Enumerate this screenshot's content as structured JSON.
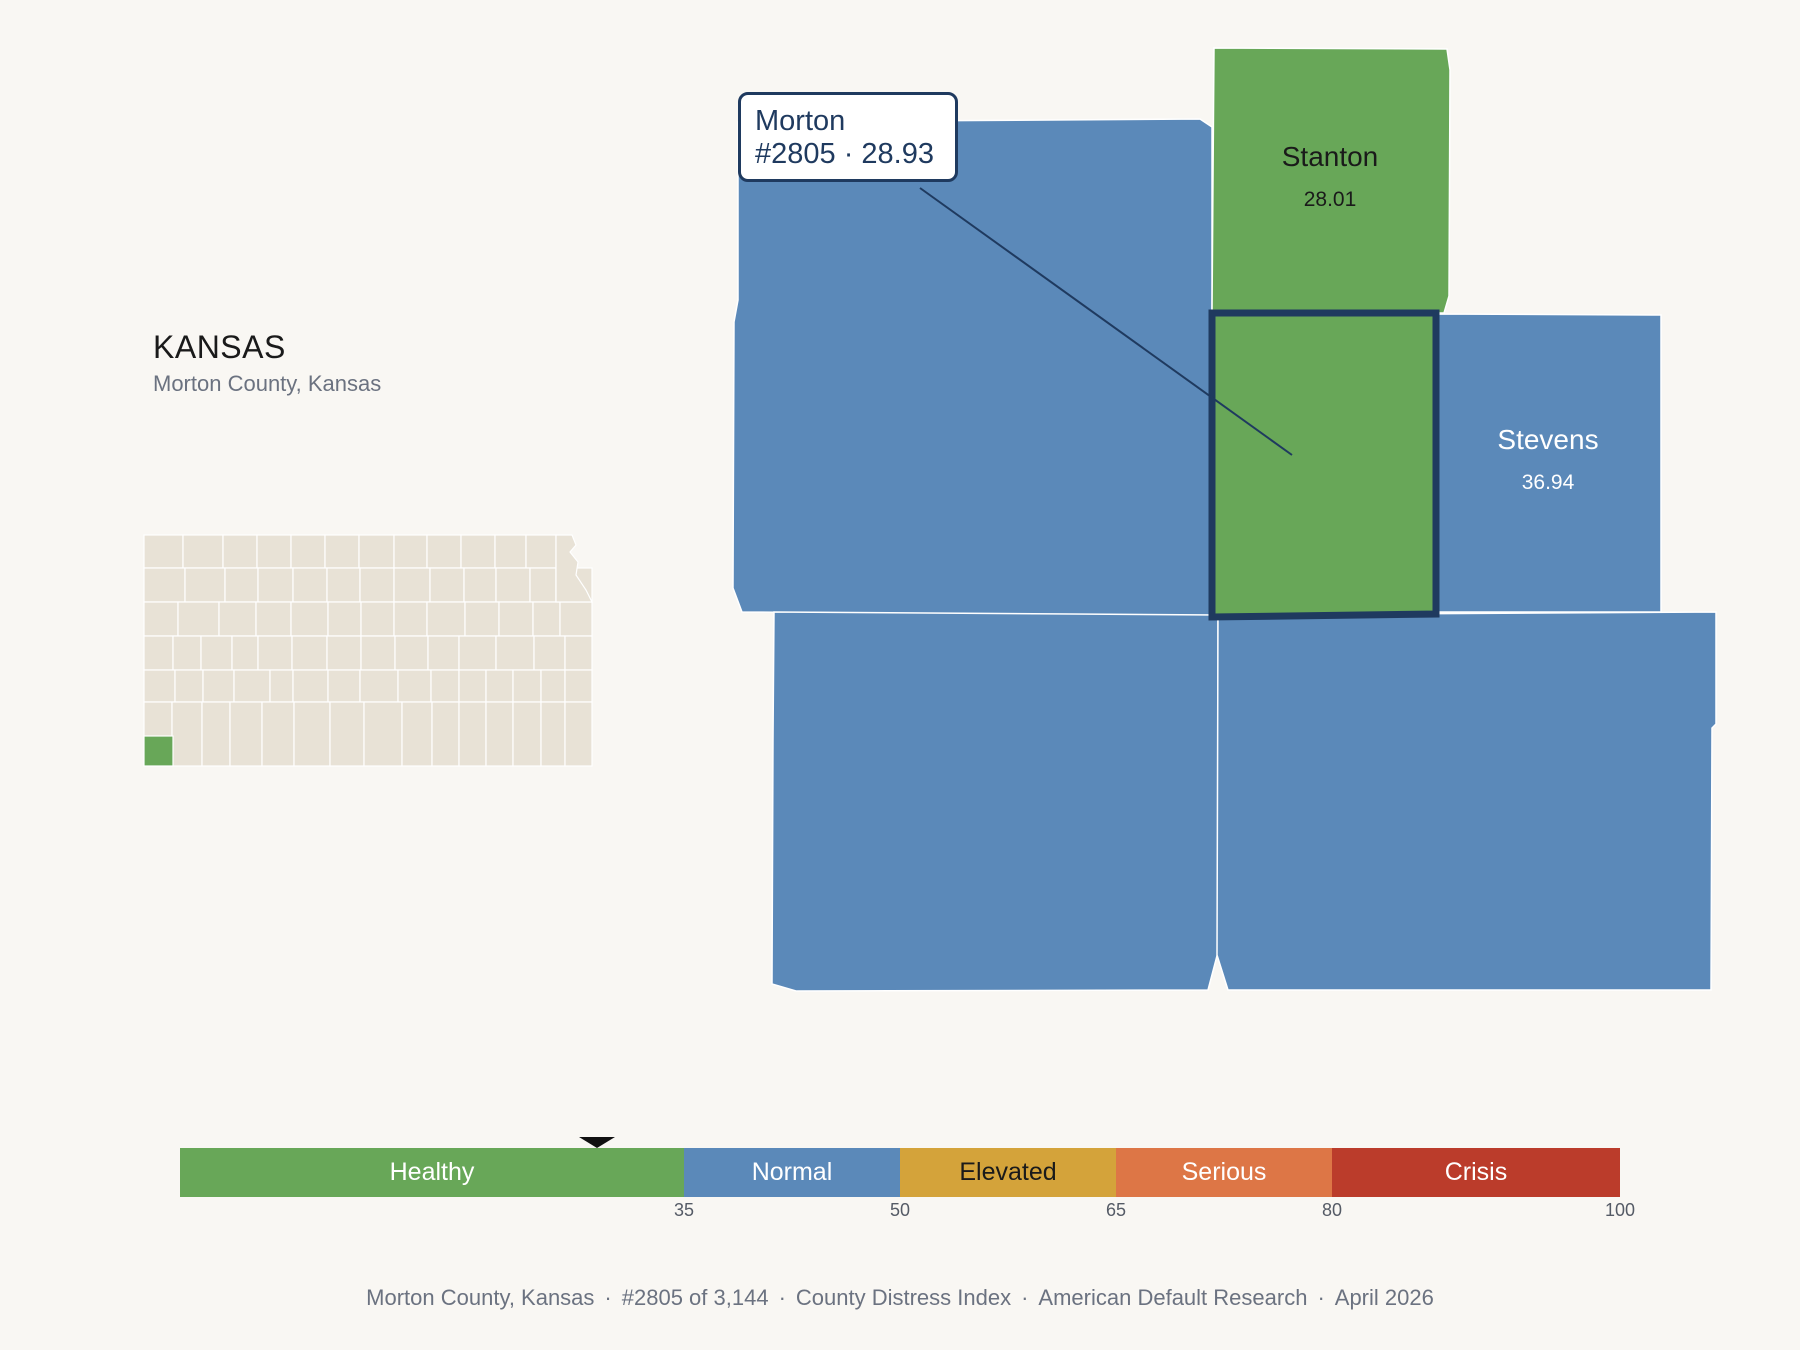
{
  "header": {
    "state_title": "KANSAS",
    "subtitle": "Morton County, Kansas"
  },
  "tooltip": {
    "county": "Morton",
    "detail": "#2805 · 28.93"
  },
  "colors": {
    "healthy": "#68a758",
    "normal": "#5b89b9",
    "elevated": "#d4a33a",
    "serious": "#dd7646",
    "crisis": "#bb3c2b",
    "highlight_outline": "#1f3a5f",
    "inset_fill": "#e8e2d6"
  },
  "counties": [
    {
      "name": "Stanton",
      "value": "28.01",
      "category": "healthy",
      "labeled": true
    },
    {
      "name": "Stevens",
      "value": "36.94",
      "category": "normal",
      "labeled": true
    },
    {
      "name": "Morton",
      "value": "28.93",
      "category": "healthy",
      "selected": true,
      "labeled": false
    },
    {
      "name": "",
      "category": "normal",
      "labeled": false
    },
    {
      "name": "",
      "category": "normal",
      "labeled": false
    },
    {
      "name": "",
      "category": "normal",
      "labeled": false
    }
  ],
  "legend": {
    "range": [
      0,
      100
    ],
    "bands": [
      {
        "label": "Healthy",
        "from": 0,
        "to": 35,
        "category": "healthy"
      },
      {
        "label": "Normal",
        "from": 35,
        "to": 50,
        "category": "normal"
      },
      {
        "label": "Elevated",
        "from": 50,
        "to": 65,
        "category": "elevated"
      },
      {
        "label": "Serious",
        "from": 65,
        "to": 80,
        "category": "serious"
      },
      {
        "label": "Crisis",
        "from": 80,
        "to": 100,
        "category": "crisis"
      }
    ],
    "ticks": [
      "35",
      "50",
      "65",
      "80",
      "100"
    ],
    "marker_value": 28.93
  },
  "footer": {
    "items": [
      "Morton County, Kansas",
      "#2805 of 3,144",
      "County Distress Index",
      "American Default Research",
      "April 2026"
    ]
  }
}
